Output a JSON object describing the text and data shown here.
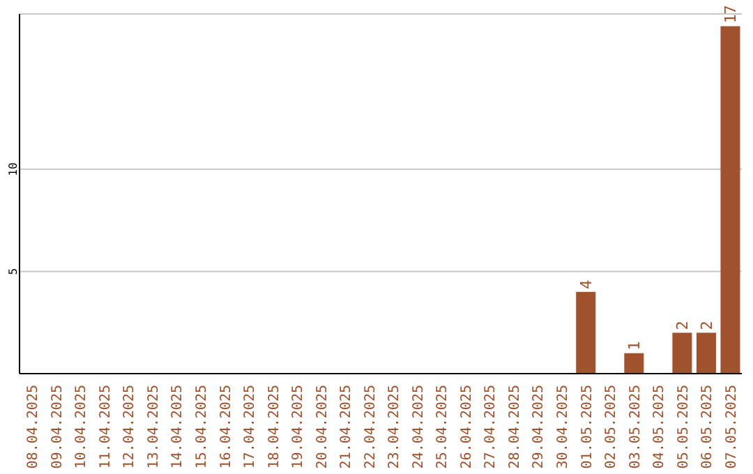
{
  "chart_data": {
    "type": "bar",
    "categories": [
      "08.04.2025",
      "09.04.2025",
      "10.04.2025",
      "11.04.2025",
      "12.04.2025",
      "13.04.2025",
      "14.04.2025",
      "15.04.2025",
      "16.04.2025",
      "17.04.2025",
      "18.04.2025",
      "19.04.2025",
      "20.04.2025",
      "21.04.2025",
      "22.04.2025",
      "23.04.2025",
      "24.04.2025",
      "25.04.2025",
      "26.04.2025",
      "27.04.2025",
      "28.04.2025",
      "29.04.2025",
      "30.04.2025",
      "01.05.2025",
      "02.05.2025",
      "03.05.2025",
      "04.05.2025",
      "05.05.2025",
      "06.05.2025",
      "07.05.2025"
    ],
    "values": [
      0,
      0,
      0,
      0,
      0,
      0,
      0,
      0,
      0,
      0,
      0,
      0,
      0,
      0,
      0,
      0,
      0,
      0,
      0,
      0,
      0,
      0,
      0,
      4,
      0,
      1,
      0,
      2,
      2,
      17
    ],
    "value_labels": [
      null,
      null,
      null,
      null,
      null,
      null,
      null,
      null,
      null,
      null,
      null,
      null,
      null,
      null,
      null,
      null,
      null,
      null,
      null,
      null,
      null,
      null,
      null,
      "4",
      null,
      "1",
      null,
      "2",
      "2",
      "17"
    ],
    "color": "#a0522d",
    "ylim": [
      0,
      17.6
    ],
    "yticks": [
      5,
      10
    ],
    "grid": "y",
    "legend": false
  }
}
